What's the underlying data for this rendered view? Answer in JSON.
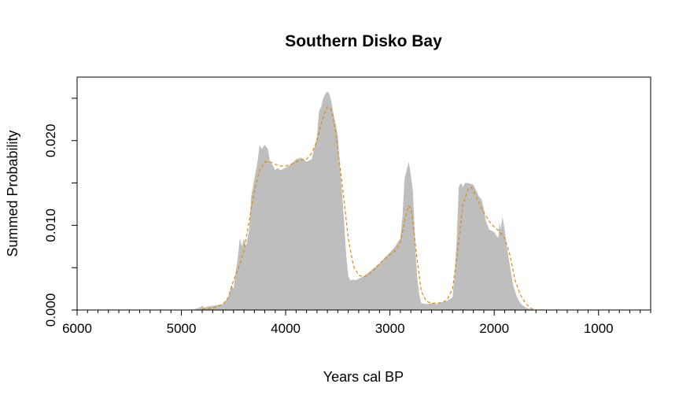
{
  "chart_data": {
    "type": "area",
    "title": "Southern Disko Bay",
    "xlabel": "Years cal BP",
    "ylabel": "Summed Probability",
    "xlim": [
      6000,
      500
    ],
    "ylim": [
      0,
      0.0275
    ],
    "x_ticks": [
      6000,
      5000,
      4000,
      3000,
      2000,
      1000
    ],
    "x_tick_labels": [
      "6000",
      "5000",
      "4000",
      "3000",
      "2000",
      "1000"
    ],
    "y_ticks": [
      0,
      0.005,
      0.01,
      0.015,
      0.02,
      0.025
    ],
    "y_tick_labels": [
      "0.000",
      "",
      "0.010",
      "",
      "0.020",
      ""
    ],
    "grid": false,
    "legend": "none",
    "series": [
      {
        "style": "filled area",
        "color": "#bebebe",
        "x": [
          4900,
          4820,
          4800,
          4780,
          4750,
          4600,
          4550,
          4520,
          4500,
          4480,
          4460,
          4440,
          4420,
          4400,
          4380,
          4350,
          4330,
          4300,
          4270,
          4250,
          4230,
          4200,
          4170,
          4150,
          4120,
          4100,
          4080,
          4050,
          4000,
          3950,
          3900,
          3850,
          3800,
          3750,
          3700,
          3680,
          3660,
          3640,
          3620,
          3600,
          3580,
          3560,
          3540,
          3520,
          3500,
          3480,
          3460,
          3440,
          3420,
          3400,
          3380,
          3350,
          3330,
          3300,
          3250,
          3200,
          3150,
          3100,
          3050,
          3000,
          2950,
          2900,
          2880,
          2860,
          2840,
          2820,
          2800,
          2780,
          2760,
          2740,
          2720,
          2700,
          2650,
          2600,
          2550,
          2500,
          2450,
          2400,
          2380,
          2360,
          2340,
          2320,
          2300,
          2280,
          2250,
          2200,
          2150,
          2120,
          2100,
          2080,
          2050,
          2000,
          1980,
          1960,
          1950,
          1940,
          1920,
          1900,
          1880,
          1860,
          1840,
          1820,
          1800,
          1780,
          1760,
          1740,
          1720,
          1700,
          1680,
          1650,
          1600
        ],
        "values": [
          0,
          0.0003,
          0.0005,
          0.0003,
          0.0004,
          0.0007,
          0.0015,
          0.003,
          0.0025,
          0.0045,
          0.006,
          0.0085,
          0.0075,
          0.0085,
          0.0075,
          0.0095,
          0.0135,
          0.0155,
          0.0175,
          0.0195,
          0.019,
          0.0195,
          0.019,
          0.0175,
          0.017,
          0.0165,
          0.0168,
          0.0165,
          0.0168,
          0.0172,
          0.0178,
          0.018,
          0.0175,
          0.0178,
          0.0205,
          0.0235,
          0.024,
          0.025,
          0.0255,
          0.0258,
          0.0255,
          0.0245,
          0.023,
          0.022,
          0.0205,
          0.017,
          0.014,
          0.0105,
          0.0065,
          0.004,
          0.0035,
          0.0036,
          0.0035,
          0.0037,
          0.004,
          0.0045,
          0.005,
          0.0055,
          0.0062,
          0.0068,
          0.0075,
          0.0085,
          0.011,
          0.0155,
          0.0165,
          0.0175,
          0.016,
          0.014,
          0.0085,
          0.004,
          0.002,
          0.0008,
          0.0007,
          0.0008,
          0.0007,
          0.0009,
          0.0011,
          0.0015,
          0.004,
          0.0085,
          0.0145,
          0.015,
          0.0145,
          0.015,
          0.015,
          0.0148,
          0.0135,
          0.013,
          0.012,
          0.0105,
          0.0095,
          0.0092,
          0.0088,
          0.0085,
          0.0105,
          0.0095,
          0.011,
          0.0095,
          0.0075,
          0.006,
          0.0045,
          0.003,
          0.0022,
          0.0015,
          0.001,
          0.0007,
          0.0005,
          0.0003,
          0.0002,
          0.0001,
          0
        ]
      },
      {
        "style": "dashed line",
        "color": "#e08a00",
        "x": [
          4800,
          4700,
          4600,
          4550,
          4500,
          4450,
          4400,
          4350,
          4300,
          4250,
          4200,
          4150,
          4100,
          4050,
          4000,
          3950,
          3900,
          3850,
          3800,
          3750,
          3700,
          3650,
          3600,
          3570,
          3550,
          3520,
          3500,
          3450,
          3400,
          3350,
          3300,
          3250,
          3200,
          3150,
          3100,
          3050,
          3000,
          2950,
          2900,
          2850,
          2820,
          2800,
          2780,
          2750,
          2700,
          2650,
          2600,
          2550,
          2500,
          2450,
          2400,
          2350,
          2300,
          2250,
          2220,
          2200,
          2150,
          2100,
          2050,
          2000,
          1950,
          1900,
          1850,
          1800,
          1750,
          1700,
          1650,
          1600
        ],
        "values": [
          0.0001,
          0.0002,
          0.0007,
          0.0015,
          0.0035,
          0.005,
          0.007,
          0.0105,
          0.014,
          0.0165,
          0.0175,
          0.0175,
          0.0172,
          0.017,
          0.017,
          0.0172,
          0.0175,
          0.0177,
          0.0178,
          0.0185,
          0.02,
          0.0225,
          0.024,
          0.0238,
          0.023,
          0.021,
          0.019,
          0.014,
          0.0085,
          0.0052,
          0.0041,
          0.0039,
          0.0042,
          0.0048,
          0.0055,
          0.006,
          0.0065,
          0.007,
          0.008,
          0.011,
          0.0123,
          0.012,
          0.0105,
          0.007,
          0.0022,
          0.001,
          0.0008,
          0.0008,
          0.0009,
          0.0012,
          0.0025,
          0.007,
          0.0125,
          0.0143,
          0.0145,
          0.014,
          0.0128,
          0.0115,
          0.0105,
          0.0098,
          0.0093,
          0.0085,
          0.0065,
          0.0035,
          0.0018,
          0.0008,
          0.0002,
          0
        ]
      }
    ]
  }
}
